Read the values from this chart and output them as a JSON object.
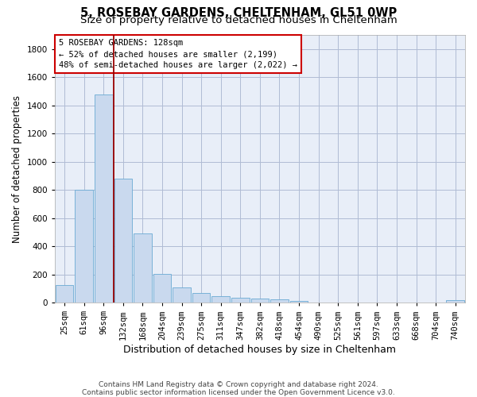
{
  "title_line1": "5, ROSEBAY GARDENS, CHELTENHAM, GL51 0WP",
  "title_line2": "Size of property relative to detached houses in Cheltenham",
  "xlabel": "Distribution of detached houses by size in Cheltenham",
  "ylabel": "Number of detached properties",
  "footnote_line1": "Contains HM Land Registry data © Crown copyright and database right 2024.",
  "footnote_line2": "Contains public sector information licensed under the Open Government Licence v3.0.",
  "bar_labels": [
    "25sqm",
    "61sqm",
    "96sqm",
    "132sqm",
    "168sqm",
    "204sqm",
    "239sqm",
    "275sqm",
    "311sqm",
    "347sqm",
    "382sqm",
    "418sqm",
    "454sqm",
    "490sqm",
    "525sqm",
    "561sqm",
    "597sqm",
    "633sqm",
    "668sqm",
    "704sqm",
    "740sqm"
  ],
  "bar_values": [
    125,
    800,
    1480,
    880,
    490,
    205,
    105,
    65,
    45,
    35,
    30,
    20,
    10,
    0,
    0,
    0,
    0,
    0,
    0,
    0,
    15
  ],
  "bar_color": "#c9d9ee",
  "bar_edge_color": "#6aaad4",
  "vline_position": 2.5,
  "vline_color": "#990000",
  "annotation_text": "5 ROSEBAY GARDENS: 128sqm\n← 52% of detached houses are smaller (2,199)\n48% of semi-detached houses are larger (2,022) →",
  "annotation_edge_color": "#cc0000",
  "ylim_max": 1900,
  "yticks": [
    0,
    200,
    400,
    600,
    800,
    1000,
    1200,
    1400,
    1600,
    1800
  ],
  "axes_bg_color": "#e8eef8",
  "grid_color": "#b0bcd4",
  "title1_fontsize": 10.5,
  "title2_fontsize": 9.5,
  "xlabel_fontsize": 9,
  "ylabel_fontsize": 8.5,
  "tick_fontsize": 7.5,
  "annot_fontsize": 7.5,
  "footnote_fontsize": 6.5
}
